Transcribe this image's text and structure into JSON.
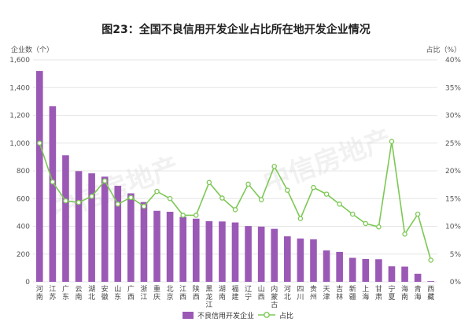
{
  "chart_data": {
    "type": "bar",
    "title": "图23：全国不良信用开发企业占比所在地开发企业情况",
    "ylabel_left": "企业数（个）",
    "ylabel_right": "占比（%）",
    "ylim_left": [
      0,
      1600
    ],
    "yticks_left": [
      "0",
      "200",
      "400",
      "600",
      "800",
      "1,000",
      "1,200",
      "1,400",
      "1,600"
    ],
    "ylim_right": [
      0,
      40
    ],
    "yticks_right": [
      "0%",
      "5%",
      "10%",
      "15%",
      "20%",
      "25%",
      "30%",
      "35%",
      "40%"
    ],
    "grid": true,
    "legend_position": "bottom",
    "categories": [
      "河南",
      "江苏",
      "广东",
      "云南",
      "湖北",
      "安徽",
      "山东",
      "广西",
      "浙江",
      "重庆",
      "北京",
      "江西",
      "陕西",
      "黑龙江",
      "湖南",
      "福建",
      "辽宁",
      "山西",
      "内蒙古",
      "河北",
      "四川",
      "贵州",
      "天津",
      "吉林",
      "新疆",
      "上海",
      "甘肃",
      "宁夏",
      "海南",
      "青海",
      "西藏"
    ],
    "series": [
      {
        "name": "不良信用开发企业",
        "type": "bar",
        "axis": "left",
        "color": "#9b59b6",
        "values": [
          1520,
          1265,
          912,
          798,
          782,
          758,
          692,
          638,
          575,
          512,
          505,
          468,
          455,
          437,
          435,
          428,
          402,
          398,
          382,
          328,
          312,
          306,
          226,
          216,
          173,
          165,
          163,
          112,
          110,
          58,
          5
        ]
      },
      {
        "name": "占比",
        "type": "line",
        "axis": "right",
        "color": "#7dc855",
        "values": [
          25.0,
          18.0,
          14.6,
          14.3,
          15.4,
          18.2,
          14.0,
          15.2,
          13.6,
          16.3,
          15.0,
          12.0,
          12.0,
          17.9,
          15.1,
          13.0,
          17.6,
          14.8,
          20.8,
          16.5,
          11.4,
          17.0,
          15.8,
          14.0,
          12.2,
          10.5,
          9.9,
          25.3,
          8.6,
          12.2,
          3.9
        ]
      }
    ]
  },
  "legend": {
    "bar_label": "不良信用开发企业",
    "line_label": "占比"
  },
  "watermark": "中信房地产"
}
